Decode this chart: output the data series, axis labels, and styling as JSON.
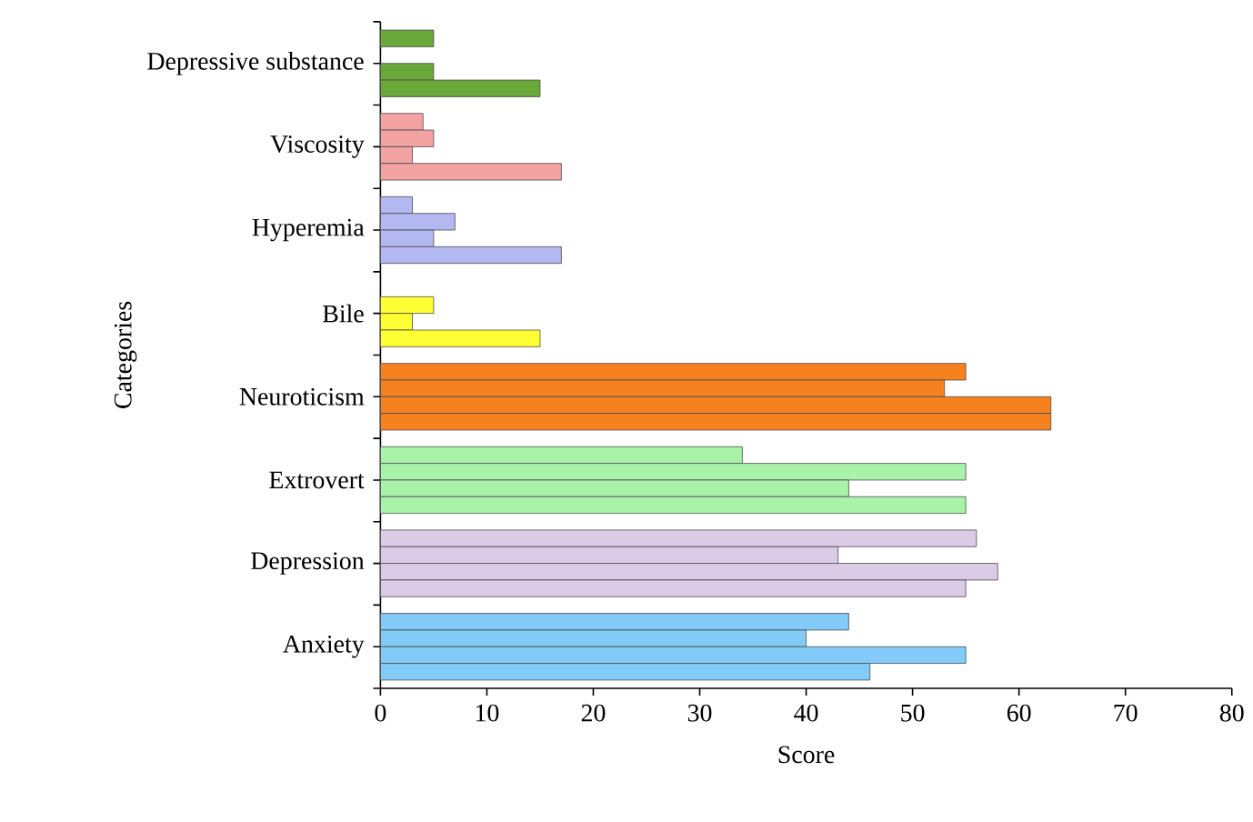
{
  "chart_data": {
    "type": "bar",
    "orientation": "horizontal",
    "xlabel": "Score",
    "ylabel": "Categories",
    "categories": [
      "Depressive substance",
      "Viscosity",
      "Hyperemia",
      "Bile",
      "Neuroticism",
      "Extrovert",
      "Depression",
      "Anxiety"
    ],
    "series": [
      {
        "values": [
          5,
          4,
          3,
          null,
          55,
          34,
          56,
          44
        ],
        "colors": [
          "#6aa83a",
          "#f4a3a3",
          "#b3b8f0",
          "#ffff33",
          "#f5821f",
          "#a9f2a9",
          "#dccbe6",
          "#82cbf8"
        ]
      },
      {
        "values": [
          null,
          5,
          7,
          5,
          53,
          55,
          43,
          40
        ],
        "colors": [
          "#6aa83a",
          "#f4a3a3",
          "#b3b8f0",
          "#ffff33",
          "#f5821f",
          "#a9f2a9",
          "#dccbe6",
          "#82cbf8"
        ]
      },
      {
        "values": [
          5,
          3,
          5,
          3,
          63,
          44,
          58,
          55
        ],
        "colors": [
          "#6aa83a",
          "#f4a3a3",
          "#b3b8f0",
          "#ffff33",
          "#f5821f",
          "#a9f2a9",
          "#dccbe6",
          "#82cbf8"
        ]
      },
      {
        "values": [
          15,
          17,
          17,
          15,
          63,
          55,
          55,
          46
        ],
        "colors": [
          "#6aa83a",
          "#f4a3a3",
          "#b3b8f0",
          "#ffff33",
          "#f5821f",
          "#a9f2a9",
          "#dccbe6",
          "#82cbf8"
        ]
      }
    ],
    "xlim": [
      0,
      80
    ],
    "xticks": [
      0,
      10,
      20,
      30,
      40,
      50,
      60,
      70,
      80
    ]
  }
}
